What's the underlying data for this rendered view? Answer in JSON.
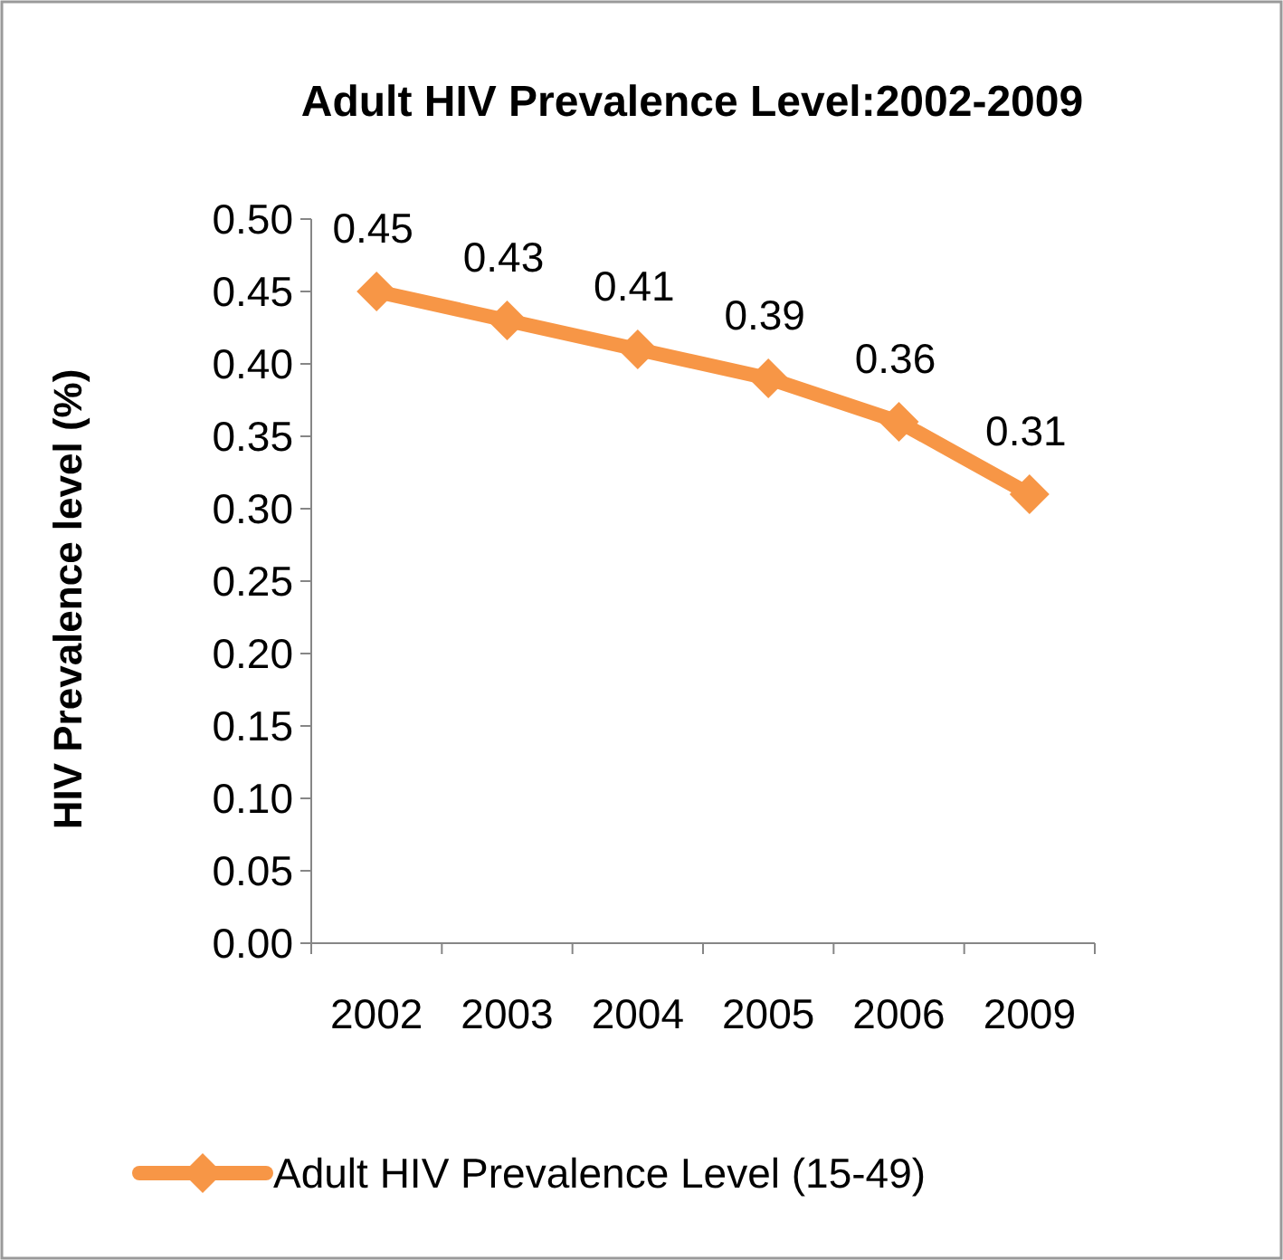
{
  "chart_data": {
    "type": "line",
    "title": "Adult HIV Prevalence Level:2002-2009",
    "ylabel": "HIV Prevalence level (%)",
    "categories": [
      "2002",
      "2003",
      "2004",
      "2005",
      "2006",
      "2009"
    ],
    "series": [
      {
        "name": "Adult HIV Prevalence Level (15-49)",
        "color": "#f79646",
        "values": [
          0.45,
          0.43,
          0.41,
          0.39,
          0.36,
          0.31
        ]
      }
    ],
    "ylim": [
      0,
      0.5
    ],
    "yticks": [
      {
        "value": 0,
        "label": "0.00"
      },
      {
        "value": 0.05,
        "label": "0.05"
      },
      {
        "value": 0.1,
        "label": "0.10"
      },
      {
        "value": 0.15,
        "label": "0.15"
      },
      {
        "value": 0.2,
        "label": "0.20"
      },
      {
        "value": 0.25,
        "label": "0.25"
      },
      {
        "value": 0.3,
        "label": "0.30"
      },
      {
        "value": 0.35,
        "label": "0.35"
      },
      {
        "value": 0.4,
        "label": "0.40"
      },
      {
        "value": 0.45,
        "label": "0.45"
      },
      {
        "value": 0.5,
        "label": "0.50"
      }
    ],
    "data_labels": true,
    "legend": "bottom",
    "marker": "diamond",
    "line_style": "solid",
    "grid": false
  }
}
